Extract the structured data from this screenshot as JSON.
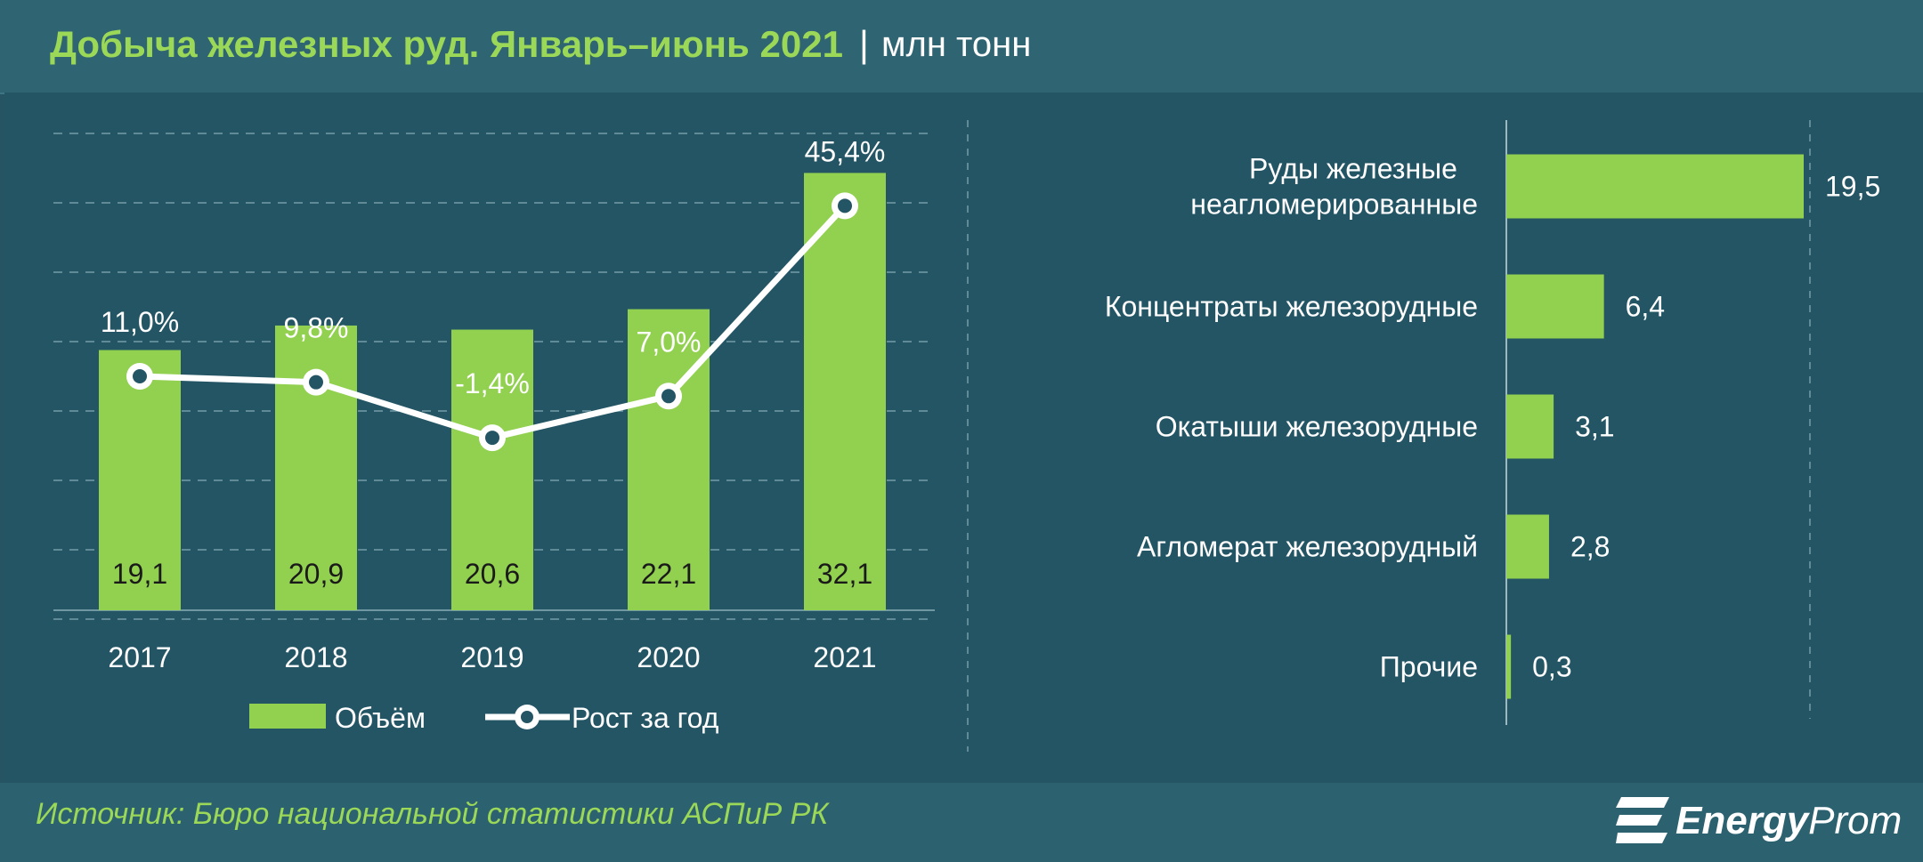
{
  "header": {
    "title": "Добыча железных руд. Январь–июнь 2021",
    "separator": "|",
    "unit": "млн тонн"
  },
  "footer": {
    "source": "Источник: Бюро национальной  статистики АСПиР РК",
    "logo_bold": "Energy",
    "logo_rest": "Prom"
  },
  "colors": {
    "bar": "#92d050",
    "line": "#ffffff",
    "background": "#235565",
    "title": "#9bd858",
    "grid": "#5f8a96"
  },
  "chart_data": [
    {
      "type": "bar",
      "categories": [
        "2017",
        "2018",
        "2019",
        "2020",
        "2021"
      ],
      "series": [
        {
          "name": "Объём",
          "values": [
            19.1,
            20.9,
            20.6,
            22.1,
            32.1
          ],
          "value_labels": [
            "19,1",
            "20,9",
            "20,6",
            "22,1",
            "32,1"
          ]
        },
        {
          "name": "Рост за год",
          "values": [
            11.0,
            9.8,
            -1.4,
            7.0,
            45.4
          ],
          "value_labels": [
            "11,0%",
            "9,8%",
            "-1,4%",
            "7,0%",
            "45,4%"
          ]
        }
      ],
      "grid": true,
      "legend": "bottom"
    },
    {
      "type": "bar",
      "orientation": "horizontal",
      "categories": [
        [
          "Руды железные",
          "неагломерированные"
        ],
        [
          "Концентраты железорудные"
        ],
        [
          "Окатыши железорудные"
        ],
        [
          "Агломерат железорудный"
        ],
        [
          "Прочие"
        ]
      ],
      "values": [
        19.5,
        6.4,
        3.1,
        2.8,
        0.3
      ],
      "value_labels": [
        "19,5",
        "6,4",
        "3,1",
        "2,8",
        "0,3"
      ],
      "grid": true
    }
  ]
}
